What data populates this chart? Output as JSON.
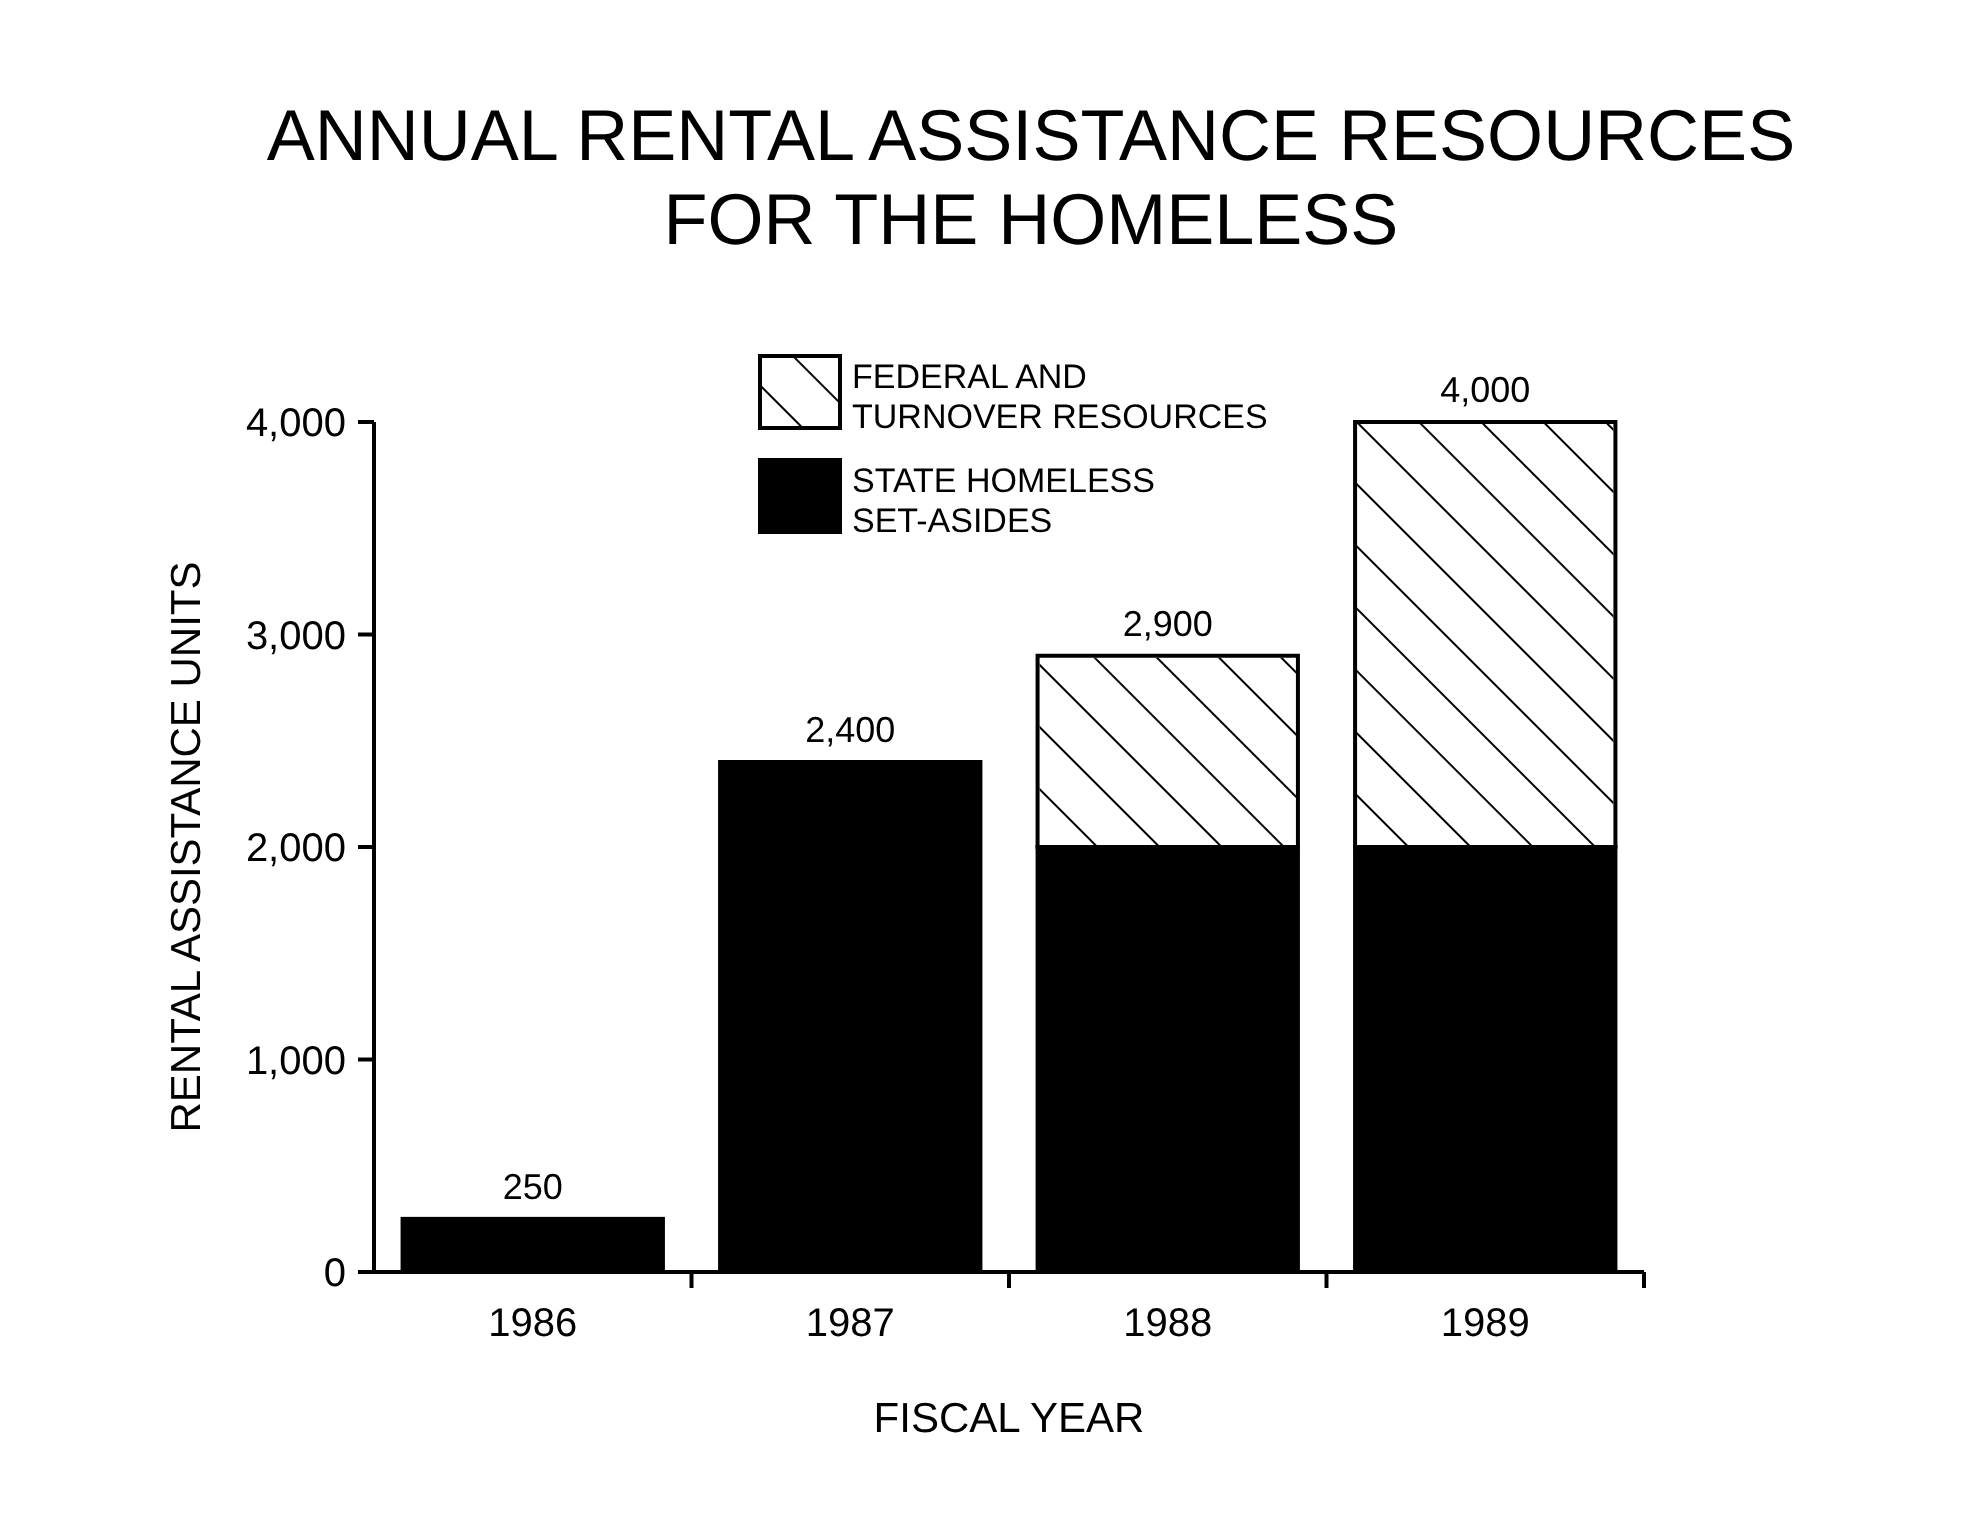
{
  "chart_data": {
    "type": "bar",
    "title": "ANNUAL RENTAL ASSISTANCE RESOURCES\nFOR THE HOMELESS",
    "xlabel": "FISCAL YEAR",
    "ylabel": "RENTAL ASSISTANCE UNITS",
    "categories": [
      "1986",
      "1987",
      "1988",
      "1989"
    ],
    "stacked": true,
    "series": [
      {
        "name": "STATE HOMELESS SET-ASIDES",
        "color": "#000000",
        "values": [
          250,
          2400,
          2000,
          2000
        ]
      },
      {
        "name": "FEDERAL AND TURNOVER RESOURCES",
        "color": "#ffffff",
        "values": [
          0,
          0,
          900,
          2000
        ]
      }
    ],
    "totals": [
      "250",
      "2,400",
      "2,900",
      "4,000"
    ],
    "ylim": [
      0,
      4000
    ],
    "yticks": [
      {
        "value": 0,
        "label": "0"
      },
      {
        "value": 1000,
        "label": "1,000"
      },
      {
        "value": 2000,
        "label": "2,000"
      },
      {
        "value": 3000,
        "label": "3,000"
      },
      {
        "value": 4000,
        "label": "4,000"
      }
    ],
    "grid": false,
    "legend": "top left"
  }
}
